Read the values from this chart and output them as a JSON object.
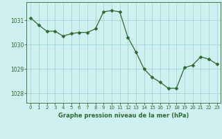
{
  "x": [
    0,
    1,
    2,
    3,
    4,
    5,
    6,
    7,
    8,
    9,
    10,
    11,
    12,
    13,
    14,
    15,
    16,
    17,
    18,
    19,
    20,
    21,
    22,
    23
  ],
  "y": [
    1031.1,
    1030.8,
    1030.55,
    1030.55,
    1030.35,
    1030.45,
    1030.5,
    1030.5,
    1030.65,
    1031.35,
    1031.4,
    1031.35,
    1030.3,
    1029.7,
    1029.0,
    1028.65,
    1028.45,
    1028.2,
    1028.2,
    1029.05,
    1029.15,
    1029.5,
    1029.4,
    1029.2
  ],
  "line_color": "#2d6a2d",
  "marker": "D",
  "marker_size": 2.5,
  "bg_color": "#cff0f0",
  "grid_color": "#a0d8d8",
  "tick_color": "#2d6a2d",
  "xlabel": "Graphe pression niveau de la mer (hPa)",
  "yticks": [
    1028,
    1029,
    1030,
    1031
  ],
  "ylim": [
    1027.6,
    1031.75
  ],
  "xlim": [
    -0.5,
    23.5
  ],
  "xticks": [
    0,
    1,
    2,
    3,
    4,
    5,
    6,
    7,
    8,
    9,
    10,
    11,
    12,
    13,
    14,
    15,
    16,
    17,
    18,
    19,
    20,
    21,
    22,
    23
  ],
  "spine_color": "#2d6a2d",
  "fig_width": 3.2,
  "fig_height": 2.0,
  "dpi": 100
}
